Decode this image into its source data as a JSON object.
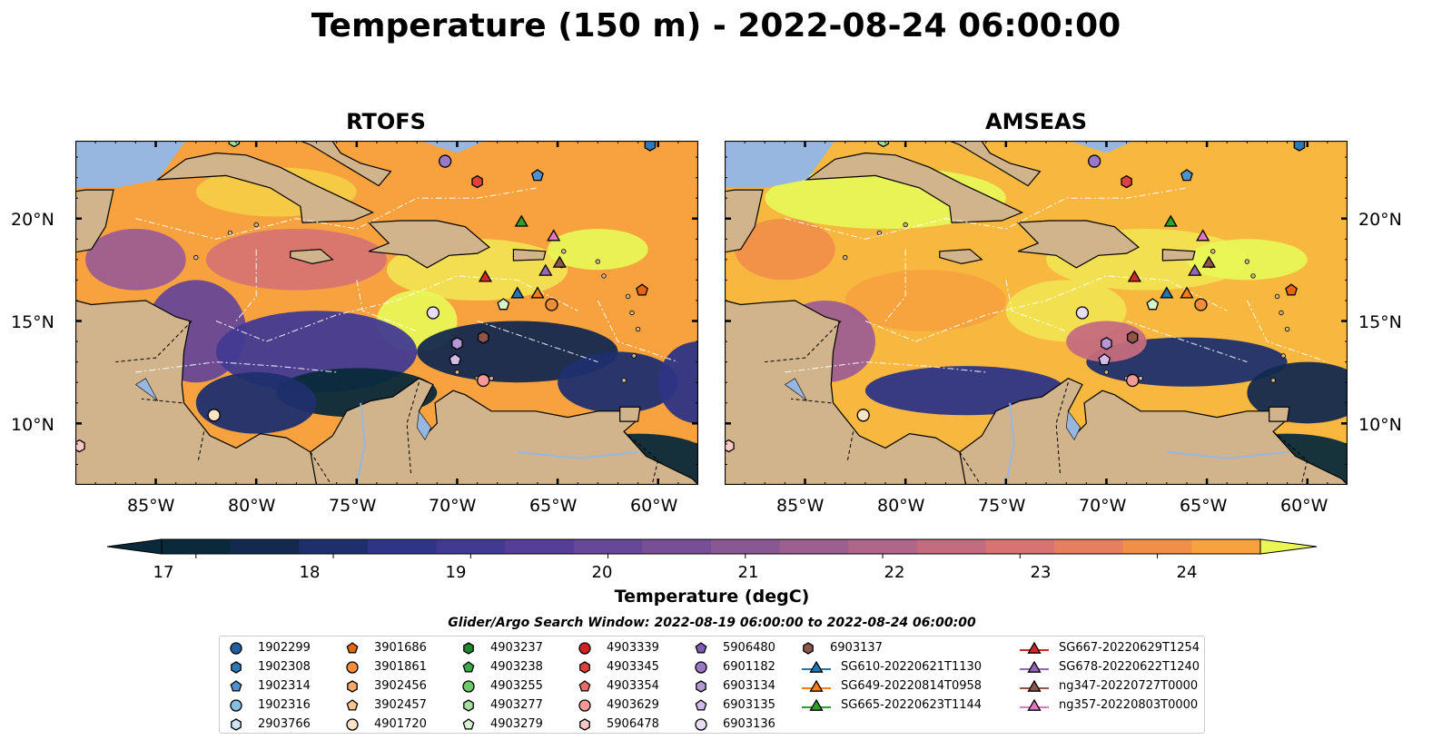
{
  "title": "Temperature (150 m) - 2022-08-24 06:00:00",
  "panels": [
    {
      "title": "RTOFS"
    },
    {
      "title": "AMSEAS"
    }
  ],
  "lon_labels": [
    "85°W",
    "80°W",
    "75°W",
    "70°W",
    "65°W",
    "60°W"
  ],
  "lat_labels": [
    "20°N",
    "15°N",
    "10°N"
  ],
  "colorbar": {
    "label": "Temperature (degC)",
    "ticks": [
      "17",
      "18",
      "19",
      "20",
      "21",
      "22",
      "23",
      "24"
    ],
    "range": [
      16.75,
      24.75
    ],
    "step": 0.5,
    "colors": [
      "#0a2a3b",
      "#14294f",
      "#1f2f6e",
      "#2e3486",
      "#423a92",
      "#553f96",
      "#674797",
      "#784f97",
      "#8a5795",
      "#9d5e90",
      "#b06589",
      "#c46c7f",
      "#d77471",
      "#e67f5d",
      "#f18f49",
      "#f7a23f",
      "#f8b73f",
      "#f6cc45",
      "#f2e252",
      "#e9f656"
    ],
    "extend_low_color": "#0a2a3b",
    "extend_high_color": "#e9f656"
  },
  "legend": {
    "title": "Glider/Argo Search Window: 2022-08-19 06:00:00 to 2022-08-24 06:00:00",
    "columns": [
      [
        {
          "label": "1902299",
          "marker": "circle",
          "color": "#1f5fa0"
        },
        {
          "label": "1902308",
          "marker": "hexagon",
          "color": "#2f78b8"
        },
        {
          "label": "1902314",
          "marker": "pentagon",
          "color": "#4c93cf"
        },
        {
          "label": "1902316",
          "marker": "circle",
          "color": "#86bde3"
        },
        {
          "label": "2903766",
          "marker": "hexagon",
          "color": "#cbe3f5"
        }
      ],
      [
        {
          "label": "3901686",
          "marker": "pentagon",
          "color": "#e8640e"
        },
        {
          "label": "3901861",
          "marker": "circle",
          "color": "#f58c3a"
        },
        {
          "label": "3902456",
          "marker": "hexagon",
          "color": "#f9a865"
        },
        {
          "label": "3902457",
          "marker": "pentagon",
          "color": "#fcc592"
        },
        {
          "label": "4901720",
          "marker": "circle",
          "color": "#fde2c4"
        }
      ],
      [
        {
          "label": "4903237",
          "marker": "hexagon",
          "color": "#1e8a2e"
        },
        {
          "label": "4903238",
          "marker": "pentagon",
          "color": "#3caa47"
        },
        {
          "label": "4903255",
          "marker": "circle",
          "color": "#6cc96a"
        },
        {
          "label": "4903277",
          "marker": "hexagon",
          "color": "#a4e09c"
        },
        {
          "label": "4903279",
          "marker": "pentagon",
          "color": "#d6f3d0"
        }
      ],
      [
        {
          "label": "4903339",
          "marker": "circle",
          "color": "#d0201f"
        },
        {
          "label": "4903345",
          "marker": "hexagon",
          "color": "#e0413d"
        },
        {
          "label": "4903354",
          "marker": "pentagon",
          "color": "#ec6b67"
        },
        {
          "label": "4903629",
          "marker": "circle",
          "color": "#f59a96"
        },
        {
          "label": "5906478",
          "marker": "hexagon",
          "color": "#fbc8c5"
        }
      ],
      [
        {
          "label": "5906480",
          "marker": "pentagon",
          "color": "#7f5bb6"
        },
        {
          "label": "6901182",
          "marker": "circle",
          "color": "#9a78c8"
        },
        {
          "label": "6903134",
          "marker": "hexagon",
          "color": "#b698d8"
        },
        {
          "label": "6903135",
          "marker": "pentagon",
          "color": "#d2bbe8"
        },
        {
          "label": "6903136",
          "marker": "circle",
          "color": "#e8dcf6"
        }
      ],
      [
        {
          "label": "6903137",
          "marker": "hexagon",
          "color": "#8c564b"
        },
        {
          "label": "SG610-20220621T1130",
          "marker": "triangle-line",
          "color": "#1f77b4"
        },
        {
          "label": "SG649-20220814T0958",
          "marker": "triangle-line",
          "color": "#ff7f0e"
        },
        {
          "label": "SG665-20220623T1144",
          "marker": "triangle-line",
          "color": "#2ca02c"
        }
      ],
      [
        {
          "label": "SG667-20220629T1254",
          "marker": "triangle-line",
          "color": "#d62728"
        },
        {
          "label": "SG678-20220622T1240",
          "marker": "triangle-line",
          "color": "#9467bd"
        },
        {
          "label": "ng347-20220727T0000",
          "marker": "triangle-line",
          "color": "#8c564b"
        },
        {
          "label": "ng357-20220803T0000",
          "marker": "triangle-line",
          "color": "#e377c2"
        }
      ]
    ]
  },
  "map_markers": [
    {
      "id": "1902308",
      "lon": -60.4,
      "lat": 23.6,
      "marker": "hexagon",
      "color": "#2f78b8"
    },
    {
      "id": "1902314",
      "lon": -66.0,
      "lat": 22.1,
      "marker": "pentagon",
      "color": "#4c93cf"
    },
    {
      "id": "6901182",
      "lon": -70.6,
      "lat": 22.8,
      "marker": "circle",
      "color": "#9a78c8"
    },
    {
      "id": "4903345",
      "lon": -69.0,
      "lat": 21.8,
      "marker": "hexagon",
      "color": "#e0413d"
    },
    {
      "id": "SG665-20220623T1144",
      "lon": -66.8,
      "lat": 19.8,
      "marker": "triangle",
      "color": "#2ca02c"
    },
    {
      "id": "ng357-20220803T0000",
      "lon": -65.2,
      "lat": 19.1,
      "marker": "triangle",
      "color": "#e377c2"
    },
    {
      "id": "ng347-20220727T0000",
      "lon": -64.9,
      "lat": 17.8,
      "marker": "triangle",
      "color": "#8c564b"
    },
    {
      "id": "SG678-20220622T1240",
      "lon": -65.6,
      "lat": 17.4,
      "marker": "triangle",
      "color": "#9467bd"
    },
    {
      "id": "SG667-20220629T1254",
      "lon": -68.6,
      "lat": 17.1,
      "marker": "triangle",
      "color": "#d62728"
    },
    {
      "id": "SG610-20220621T1130",
      "lon": -67.0,
      "lat": 16.3,
      "marker": "triangle",
      "color": "#1f77b4"
    },
    {
      "id": "SG649-20220814T0958",
      "lon": -66.0,
      "lat": 16.3,
      "marker": "triangle",
      "color": "#ff7f0e"
    },
    {
      "id": "3901861",
      "lon": -65.3,
      "lat": 15.8,
      "marker": "circle",
      "color": "#f58c3a"
    },
    {
      "id": "4903279",
      "lon": -67.7,
      "lat": 15.8,
      "marker": "pentagon",
      "color": "#d6f3d0"
    },
    {
      "id": "3901686",
      "lon": -60.8,
      "lat": 16.5,
      "marker": "pentagon",
      "color": "#e8640e"
    },
    {
      "id": "6903136",
      "lon": -71.2,
      "lat": 15.4,
      "marker": "circle",
      "color": "#e8dcf6"
    },
    {
      "id": "6903137",
      "lon": -68.7,
      "lat": 14.2,
      "marker": "hexagon",
      "color": "#8c564b"
    },
    {
      "id": "6903134",
      "lon": -70.0,
      "lat": 13.9,
      "marker": "hexagon",
      "color": "#b698d8"
    },
    {
      "id": "6903135",
      "lon": -70.1,
      "lat": 13.1,
      "marker": "pentagon",
      "color": "#d2bbe8"
    },
    {
      "id": "4903629",
      "lon": -68.7,
      "lat": 12.1,
      "marker": "circle",
      "color": "#f59a96"
    },
    {
      "id": "4901720",
      "lon": -82.1,
      "lat": 10.4,
      "marker": "circle",
      "color": "#fde2c4"
    },
    {
      "id": "5906478",
      "lon": -88.8,
      "lat": 8.9,
      "marker": "hexagon",
      "color": "#fbc8c5"
    },
    {
      "id": "4903277",
      "lon": -81.1,
      "lat": 23.8,
      "marker": "hexagon",
      "color": "#a4e09c"
    }
  ]
}
